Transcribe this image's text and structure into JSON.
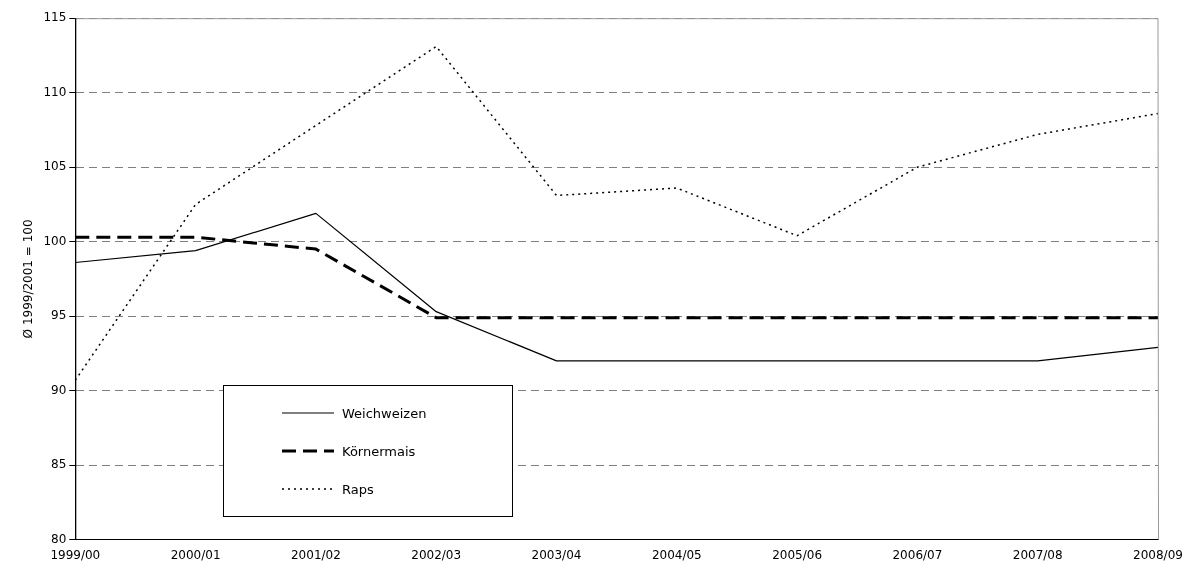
{
  "chart_data": {
    "type": "line",
    "ylabel": "Ø 1999/2001 = 100",
    "categories": [
      "1999/00",
      "2000/01",
      "2001/02",
      "2002/03",
      "2003/04",
      "2004/05",
      "2005/06",
      "2006/07",
      "2007/08",
      "2008/09"
    ],
    "series": [
      {
        "name": "Weichweizen",
        "color": "#000000",
        "line_style": "solid",
        "values": [
          98.6,
          99.4,
          101.9,
          95.3,
          92.0,
          92.0,
          92.0,
          92.0,
          92.0,
          92.9
        ]
      },
      {
        "name": "Körnermais",
        "color": "#000000",
        "line_style": "dashed",
        "values": [
          100.3,
          100.3,
          99.5,
          94.9,
          94.9,
          94.9,
          94.9,
          94.9,
          94.9,
          94.9
        ]
      },
      {
        "name": "Raps",
        "color": "#000000",
        "line_style": "dotted",
        "values": [
          90.7,
          102.5,
          107.8,
          113.1,
          103.1,
          103.6,
          100.4,
          105.0,
          107.2,
          108.6
        ]
      }
    ],
    "ylim": [
      80,
      115
    ],
    "yticks": [
      80,
      85,
      90,
      95,
      100,
      105,
      110,
      115
    ],
    "grid": "y",
    "legend": "bottom left",
    "marker": "none"
  }
}
